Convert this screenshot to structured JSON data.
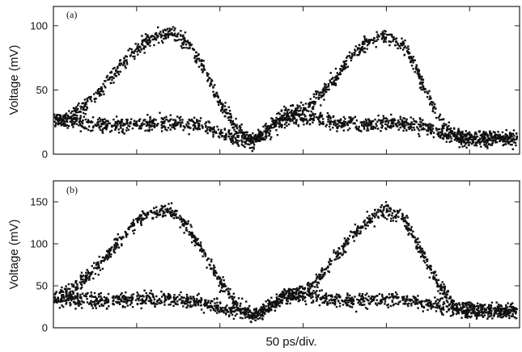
{
  "figure": {
    "xlabel": "50 ps/div."
  },
  "chart_data": [
    {
      "type": "scatter",
      "panel_label": "(a)",
      "ylabel": "Voltage (mV)",
      "ylim": [
        0,
        115
      ],
      "xlim": [
        0,
        5.6
      ],
      "yticks": [
        0,
        50,
        100
      ],
      "xticks": [
        1,
        2,
        3,
        4,
        5
      ],
      "x_unit": "50 ps per division",
      "grid": false,
      "eye_parameters": {
        "zero_level": 24,
        "one_level_peak": 92,
        "crossing_level": 28,
        "period_div": 3.0
      },
      "series": [
        {
          "x": [
            0.0,
            0.2,
            0.4,
            0.6,
            0.8,
            1.0,
            1.2,
            1.4,
            1.6,
            1.8,
            2.0,
            2.2,
            2.4,
            2.6,
            2.8,
            3.0,
            3.2,
            3.4,
            3.6,
            3.8,
            4.0,
            4.2,
            4.4,
            4.6,
            4.8,
            5.0,
            5.2,
            5.4,
            5.6
          ],
          "y_upper": [
            27,
            30,
            38,
            52,
            68,
            82,
            91,
            95,
            88,
            68,
            40,
            20,
            10,
            20,
            33,
            34,
            45,
            60,
            78,
            88,
            92,
            86,
            60,
            30,
            15,
            12,
            12,
            12,
            12
          ],
          "y_lower": [
            27,
            26,
            24,
            23,
            23,
            23,
            24,
            24,
            23,
            22,
            17,
            12,
            10,
            20,
            28,
            28,
            27,
            24,
            23,
            23,
            24,
            24,
            22,
            17,
            13,
            12,
            12,
            12,
            12
          ]
        }
      ]
    },
    {
      "type": "scatter",
      "panel_label": "(b)",
      "ylabel": "Voltage (mV)",
      "ylim": [
        0,
        175
      ],
      "xlim": [
        0,
        5.6
      ],
      "yticks": [
        0,
        50,
        100,
        150
      ],
      "xticks": [
        1,
        2,
        3,
        4,
        5
      ],
      "x_unit": "50 ps per division",
      "grid": false,
      "eye_parameters": {
        "zero_level": 34,
        "one_level_peak": 138,
        "crossing_level": 38,
        "period_div": 3.0
      },
      "series": [
        {
          "x": [
            0.0,
            0.2,
            0.4,
            0.6,
            0.8,
            1.0,
            1.2,
            1.4,
            1.6,
            1.8,
            2.0,
            2.2,
            2.4,
            2.6,
            2.8,
            3.0,
            3.2,
            3.4,
            3.6,
            3.8,
            4.0,
            4.2,
            4.4,
            4.6,
            4.8,
            5.0,
            5.2,
            5.4,
            5.6
          ],
          "y_upper": [
            35,
            45,
            60,
            80,
            105,
            125,
            138,
            140,
            122,
            90,
            55,
            28,
            15,
            25,
            40,
            42,
            60,
            85,
            110,
            130,
            140,
            132,
            95,
            55,
            28,
            20,
            20,
            20,
            20
          ],
          "y_lower": [
            36,
            34,
            33,
            32,
            33,
            33,
            34,
            34,
            32,
            30,
            24,
            18,
            15,
            25,
            38,
            38,
            36,
            33,
            32,
            33,
            34,
            34,
            31,
            26,
            22,
            20,
            20,
            20,
            20
          ]
        }
      ]
    }
  ]
}
